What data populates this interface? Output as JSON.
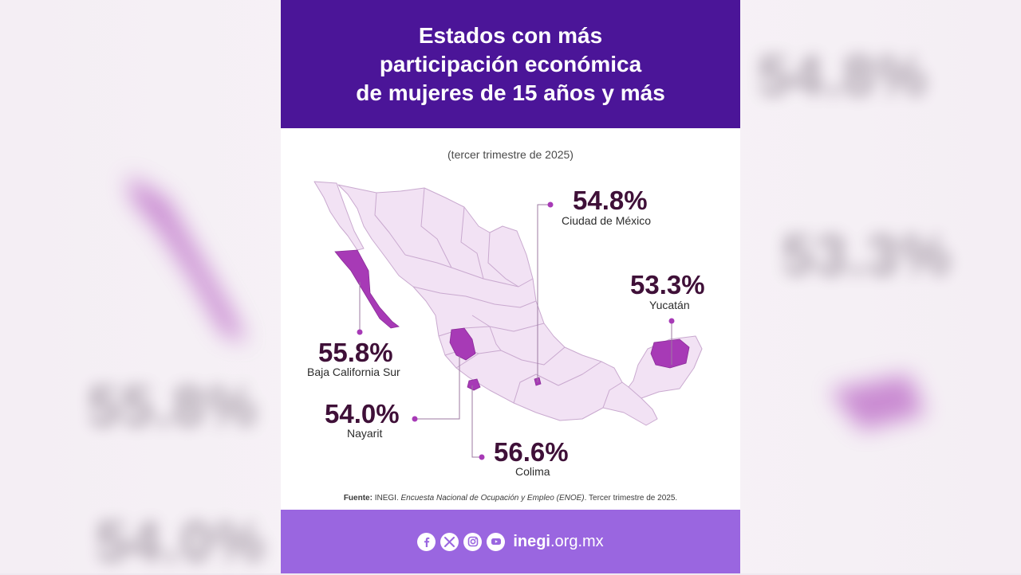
{
  "header": {
    "title_lines": [
      "Estados con más",
      "participación económica",
      "de mujeres de 15 años y más"
    ]
  },
  "subtitle": "(tercer trimestre de 2025)",
  "colors": {
    "header_bg": "#4b1598",
    "footer_bg": "#9a66e0",
    "map_base": "#f2e2f4",
    "map_highlight": "#a73ab6",
    "value_text": "#3f1038"
  },
  "map": {
    "highlighted_states": [
      {
        "name": "Ciudad de México",
        "value": "54.8%"
      },
      {
        "name": "Yucatán",
        "value": "53.3%"
      },
      {
        "name": "Baja California Sur",
        "value": "55.8%"
      },
      {
        "name": "Nayarit",
        "value": "54.0%"
      },
      {
        "name": "Colima",
        "value": "56.6%"
      }
    ]
  },
  "source": {
    "label": "Fuente:",
    "org": " INEGI. ",
    "survey": "Encuesta Nacional de Ocupación y Empleo (ENOE)",
    "period": ". Tercer trimestre de 2025."
  },
  "footer": {
    "icons": [
      "facebook-icon",
      "x-icon",
      "instagram-icon",
      "youtube-icon"
    ],
    "site_bold": "inegi",
    "site_rest": ".org.mx"
  }
}
